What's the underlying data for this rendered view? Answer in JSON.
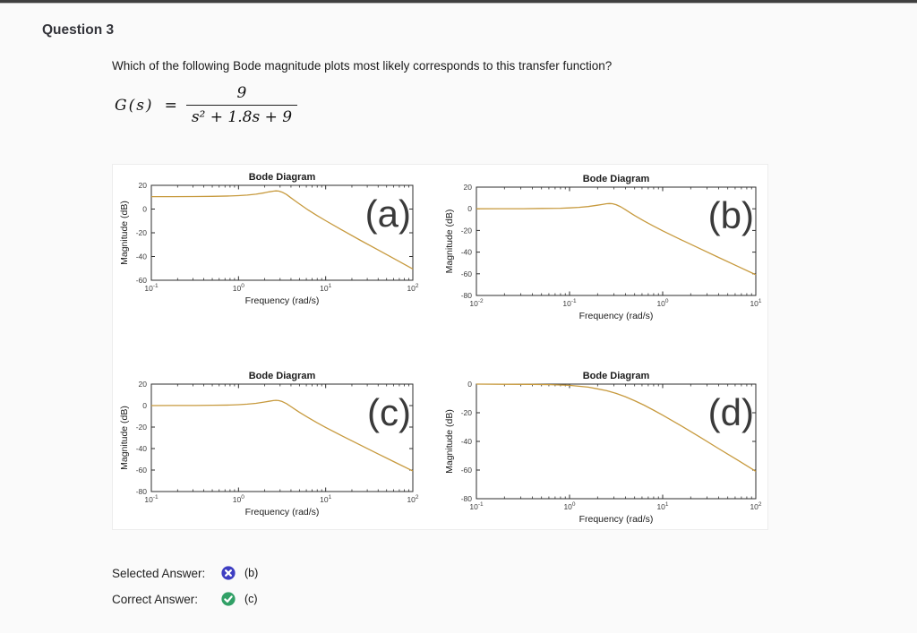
{
  "page": {
    "question_label": "Question 3",
    "question_text": "Which of the following Bode magnitude plots most likely corresponds to this transfer function?",
    "formula": {
      "lhs": "G(s)",
      "equals": "=",
      "numerator": "9",
      "denominator": "s² + 1.8s + 9"
    }
  },
  "answers": {
    "selected_label": "Selected Answer:",
    "selected_value": "(b)",
    "selected_icon": "x-circle-icon",
    "selected_icon_color": "#3e3ec2",
    "correct_label": "Correct Answer:",
    "correct_value": "(c)",
    "correct_icon": "check-circle-icon",
    "correct_icon_color": "#31a066"
  },
  "chart_data": [
    {
      "type": "line",
      "title": "Bode Diagram",
      "xlabel": "Frequency  (rad/s)",
      "ylabel": "Magnitude (dB)",
      "panel_label": "(a)",
      "x_log_range": [
        -1,
        2
      ],
      "ylim": [
        -60,
        20
      ],
      "y_ticks": [
        20,
        0,
        -20,
        -40,
        -60
      ],
      "x_ticks_exp": [
        -1,
        0,
        1,
        2
      ],
      "grid": false,
      "line_color": "#c79a3e",
      "points": [
        [
          -1,
          10.5
        ],
        [
          -0.75,
          10.5
        ],
        [
          -0.5,
          10.6
        ],
        [
          -0.3,
          10.7
        ],
        [
          -0.1,
          11.0
        ],
        [
          0,
          11.3
        ],
        [
          0.1,
          11.8
        ],
        [
          0.2,
          12.5
        ],
        [
          0.3,
          13.7
        ],
        [
          0.35,
          14.5
        ],
        [
          0.4,
          15.1
        ],
        [
          0.43,
          15.3
        ],
        [
          0.46,
          15.2
        ],
        [
          0.5,
          14.3
        ],
        [
          0.55,
          12.3
        ],
        [
          0.6,
          9.6
        ],
        [
          0.65,
          6.9
        ],
        [
          0.7,
          4.2
        ],
        [
          0.8,
          -0.8
        ],
        [
          0.9,
          -5.4
        ],
        [
          1,
          -9.8
        ],
        [
          1.2,
          -18.2
        ],
        [
          1.4,
          -26.4
        ],
        [
          1.6,
          -34.4
        ],
        [
          1.8,
          -42.4
        ],
        [
          2,
          -50.5
        ]
      ]
    },
    {
      "type": "line",
      "title": "Bode Diagram",
      "xlabel": "Frequency  (rad/s)",
      "ylabel": "Magnitude (dB)",
      "panel_label": "(b)",
      "x_log_range": [
        -2,
        1
      ],
      "ylim": [
        -80,
        20
      ],
      "y_ticks": [
        20,
        0,
        -20,
        -40,
        -60,
        -80
      ],
      "x_ticks_exp": [
        -2,
        -1,
        0,
        1
      ],
      "grid": false,
      "line_color": "#c79a3e",
      "points": [
        [
          -2,
          0
        ],
        [
          -1.75,
          0.1
        ],
        [
          -1.5,
          0.1
        ],
        [
          -1.3,
          0.3
        ],
        [
          -1.1,
          0.5
        ],
        [
          -1,
          0.8
        ],
        [
          -0.9,
          1.3
        ],
        [
          -0.8,
          2.1
        ],
        [
          -0.7,
          3.3
        ],
        [
          -0.65,
          4.0
        ],
        [
          -0.6,
          4.7
        ],
        [
          -0.57,
          4.9
        ],
        [
          -0.54,
          4.7
        ],
        [
          -0.5,
          3.8
        ],
        [
          -0.45,
          1.8
        ],
        [
          -0.4,
          -0.8
        ],
        [
          -0.35,
          -3.6
        ],
        [
          -0.3,
          -6.3
        ],
        [
          -0.2,
          -11.2
        ],
        [
          -0.1,
          -15.9
        ],
        [
          0,
          -20.3
        ],
        [
          0.2,
          -28.7
        ],
        [
          0.4,
          -36.8
        ],
        [
          0.6,
          -44.9
        ],
        [
          0.8,
          -52.9
        ],
        [
          1,
          -60.9
        ]
      ]
    },
    {
      "type": "line",
      "title": "Bode Diagram",
      "xlabel": "Frequency  (rad/s)",
      "ylabel": "Magnitude (dB)",
      "panel_label": "(c)",
      "x_log_range": [
        -1,
        2
      ],
      "ylim": [
        -80,
        20
      ],
      "y_ticks": [
        20,
        0,
        -20,
        -40,
        -60,
        -80
      ],
      "x_ticks_exp": [
        -1,
        0,
        1,
        2
      ],
      "grid": false,
      "line_color": "#c79a3e",
      "points": [
        [
          -1,
          0
        ],
        [
          -0.75,
          0.1
        ],
        [
          -0.5,
          0.1
        ],
        [
          -0.3,
          0.3
        ],
        [
          -0.1,
          0.5
        ],
        [
          0,
          0.8
        ],
        [
          0.1,
          1.3
        ],
        [
          0.2,
          2.1
        ],
        [
          0.3,
          3.3
        ],
        [
          0.35,
          4.0
        ],
        [
          0.4,
          4.7
        ],
        [
          0.43,
          4.9
        ],
        [
          0.46,
          4.7
        ],
        [
          0.5,
          3.8
        ],
        [
          0.55,
          1.8
        ],
        [
          0.6,
          -0.8
        ],
        [
          0.65,
          -3.6
        ],
        [
          0.7,
          -6.3
        ],
        [
          0.8,
          -11.2
        ],
        [
          0.9,
          -15.9
        ],
        [
          1,
          -20.3
        ],
        [
          1.2,
          -28.7
        ],
        [
          1.4,
          -36.8
        ],
        [
          1.6,
          -44.9
        ],
        [
          1.8,
          -52.9
        ],
        [
          2,
          -60.9
        ]
      ]
    },
    {
      "type": "line",
      "title": "Bode Diagram",
      "xlabel": "Frequency  (rad/s)",
      "ylabel": "Magnitude (dB)",
      "panel_label": "(d)",
      "x_log_range": [
        -1,
        2
      ],
      "ylim": [
        -80,
        0
      ],
      "y_ticks": [
        0,
        -20,
        -40,
        -60,
        -80
      ],
      "x_ticks_exp": [
        -1,
        0,
        1,
        2
      ],
      "grid": false,
      "line_color": "#c79a3e",
      "points": [
        [
          -1,
          0
        ],
        [
          -0.7,
          -0.1
        ],
        [
          -0.4,
          -0.2
        ],
        [
          -0.2,
          -0.4
        ],
        [
          0,
          -0.9
        ],
        [
          0.2,
          -2.1
        ],
        [
          0.3,
          -3.3
        ],
        [
          0.4,
          -4.6
        ],
        [
          0.5,
          -6.5
        ],
        [
          0.6,
          -8.8
        ],
        [
          0.7,
          -11.6
        ],
        [
          0.8,
          -14.7
        ],
        [
          0.9,
          -18.1
        ],
        [
          1,
          -21.7
        ],
        [
          1.2,
          -29.2
        ],
        [
          1.4,
          -37.0
        ],
        [
          1.6,
          -45.0
        ],
        [
          1.8,
          -52.9
        ],
        [
          2,
          -60.9
        ]
      ]
    }
  ]
}
